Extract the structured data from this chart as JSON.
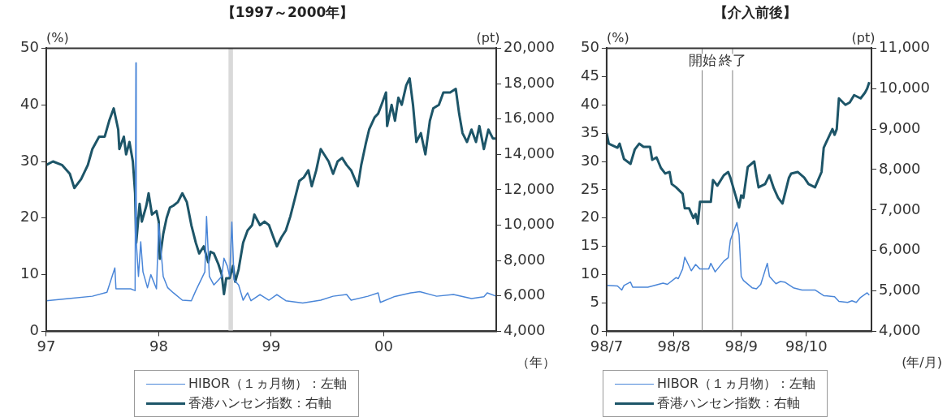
{
  "chart_data": [
    {
      "type": "line",
      "title": "【1997～2000年】",
      "ylabel": "(%)",
      "y2label": "(pt)",
      "xlabel": "（年）",
      "xlim": [
        1997,
        2001
      ],
      "xticks": [
        {
          "value": 1997,
          "label": "97"
        },
        {
          "value": 1998,
          "label": "98"
        },
        {
          "value": 1999,
          "label": "99"
        },
        {
          "value": 2000,
          "label": "00"
        }
      ],
      "ylim": [
        0,
        50
      ],
      "yticks": [
        0,
        10,
        20,
        30,
        40,
        50
      ],
      "y2lim": [
        4000,
        20000
      ],
      "y2ticks": [
        {
          "value": 4000,
          "label": "4,000"
        },
        {
          "value": 6000,
          "label": "6,000"
        },
        {
          "value": 8000,
          "label": "8,000"
        },
        {
          "value": 10000,
          "label": "10,000"
        },
        {
          "value": 12000,
          "label": "12,000"
        },
        {
          "value": 14000,
          "label": "14,000"
        },
        {
          "value": 16000,
          "label": "16,000"
        },
        {
          "value": 18000,
          "label": "18,000"
        },
        {
          "value": 20000,
          "label": "20,000"
        }
      ],
      "grid": false,
      "legend": "bottom",
      "marker": "none",
      "bands": [
        {
          "axis": "x",
          "from": 1998.62,
          "to": 1998.66,
          "color": "#d9d9d9"
        }
      ],
      "series": [
        {
          "name": "HIBOR（１ヵ月物）：左軸",
          "color": "#4a86d8",
          "x": [
            1997.0,
            1997.2,
            1997.41,
            1997.54,
            1997.61,
            1997.62,
            1997.75,
            1997.79,
            1997.797,
            1997.8,
            1997.82,
            1997.84,
            1997.86,
            1997.9,
            1997.93,
            1997.98,
            1998.0,
            1998.02,
            1998.04,
            1998.08,
            1998.13,
            1998.21,
            1998.29,
            1998.33,
            1998.41,
            1998.425,
            1998.45,
            1998.49,
            1998.56,
            1998.58,
            1998.61,
            1998.63,
            1998.65,
            1998.67,
            1998.71,
            1998.75,
            1998.79,
            1998.82,
            1998.9,
            1998.98,
            1999.05,
            1999.13,
            1999.28,
            1999.44,
            1999.55,
            1999.67,
            1999.71,
            1999.86,
            1999.95,
            1999.97,
            2000.09,
            2000.24,
            2000.32,
            2000.47,
            2000.62,
            2000.78,
            2000.89,
            2000.92,
            2001.0
          ],
          "values": [
            5.4,
            5.8,
            6.2,
            6.9,
            11.2,
            7.5,
            7.5,
            7.2,
            47.4,
            16.0,
            9.7,
            15.8,
            10.5,
            7.7,
            10.0,
            7.5,
            19.0,
            14.3,
            9.7,
            7.7,
            6.8,
            5.5,
            5.4,
            7.2,
            10.5,
            20.3,
            9.7,
            8.2,
            9.7,
            12.9,
            11.5,
            9.7,
            19.3,
            9.1,
            8.2,
            5.5,
            6.8,
            5.4,
            6.5,
            5.5,
            6.5,
            5.4,
            5.0,
            5.5,
            6.2,
            6.5,
            5.5,
            6.2,
            6.8,
            5.1,
            6.1,
            6.8,
            7.0,
            6.2,
            6.5,
            5.8,
            6.1,
            6.8,
            6.2
          ]
        },
        {
          "name": "香港ハンセン指数：右軸",
          "color": "#1d5568",
          "axis": "y2",
          "x": [
            1997.0,
            1997.06,
            1997.14,
            1997.21,
            1997.25,
            1997.31,
            1997.37,
            1997.41,
            1997.47,
            1997.52,
            1997.56,
            1997.6,
            1997.64,
            1997.65,
            1997.69,
            1997.71,
            1997.74,
            1997.77,
            1997.79,
            1997.795,
            1997.8,
            1997.83,
            1997.85,
            1997.89,
            1997.91,
            1997.94,
            1997.98,
            1998.0,
            1998.01,
            1998.04,
            1998.07,
            1998.1,
            1998.13,
            1998.17,
            1998.21,
            1998.25,
            1998.29,
            1998.33,
            1998.36,
            1998.4,
            1998.44,
            1998.46,
            1998.49,
            1998.53,
            1998.56,
            1998.58,
            1998.6,
            1998.63,
            1998.66,
            1998.68,
            1998.71,
            1998.75,
            1998.79,
            1998.83,
            1998.85,
            1998.9,
            1998.94,
            1998.98,
            1999.02,
            1999.05,
            1999.09,
            1999.13,
            1999.17,
            1999.21,
            1999.25,
            1999.29,
            1999.33,
            1999.36,
            1999.4,
            1999.44,
            1999.51,
            1999.55,
            1999.59,
            1999.63,
            1999.67,
            1999.71,
            1999.77,
            1999.8,
            1999.84,
            1999.87,
            1999.92,
            1999.95,
            1999.98,
            2000.02,
            2000.03,
            2000.07,
            2000.1,
            2000.13,
            2000.16,
            2000.2,
            2000.23,
            2000.26,
            2000.29,
            2000.33,
            2000.37,
            2000.41,
            2000.44,
            2000.49,
            2000.53,
            2000.59,
            2000.64,
            2000.67,
            2000.7,
            2000.74,
            2000.78,
            2000.82,
            2000.85,
            2000.89,
            2000.93,
            2000.97,
            2001.0
          ],
          "values": [
            13400,
            13600,
            13400,
            12900,
            12100,
            12600,
            13400,
            14300,
            15000,
            15000,
            15900,
            16600,
            15400,
            14300,
            15000,
            14000,
            14700,
            13600,
            11800,
            10400,
            9000,
            11200,
            10200,
            11100,
            11800,
            10600,
            10800,
            10200,
            8100,
            9500,
            10400,
            11000,
            11100,
            11300,
            11800,
            11300,
            10000,
            9000,
            8400,
            8800,
            7900,
            8500,
            8400,
            7800,
            7200,
            6100,
            7000,
            7000,
            7700,
            6800,
            7500,
            9000,
            9700,
            10000,
            10600,
            10000,
            10200,
            10000,
            9300,
            8800,
            9300,
            9700,
            10500,
            11500,
            12500,
            12700,
            13100,
            12200,
            13100,
            14300,
            13600,
            12900,
            13600,
            13800,
            13400,
            13100,
            12200,
            13400,
            14600,
            15400,
            16100,
            16300,
            16800,
            17500,
            15600,
            16800,
            15900,
            17200,
            16800,
            17900,
            18300,
            16800,
            14700,
            15200,
            14000,
            15900,
            16600,
            16800,
            17500,
            17500,
            17700,
            16300,
            15200,
            14700,
            15400,
            14700,
            15600,
            14300,
            15400,
            14900,
            14900
          ]
        }
      ]
    },
    {
      "type": "line",
      "title": "【介入前後】",
      "ylabel": "(%)",
      "y2label": "(pt)",
      "xlabel": "(年/月)",
      "xlim": [
        "--07-01",
        "--10-31"
      ],
      "xticks": [
        {
          "value": "--07-01",
          "label": "98/7"
        },
        {
          "value": "--08-01",
          "label": "98/8"
        },
        {
          "value": "--09-01",
          "label": "98/9"
        },
        {
          "value": "--10-01",
          "label": "98/10"
        }
      ],
      "ylim": [
        0,
        50
      ],
      "yticks": [
        0,
        5,
        10,
        15,
        20,
        25,
        30,
        35,
        40,
        45,
        50
      ],
      "y2lim": [
        4000,
        11000
      ],
      "y2ticks": [
        {
          "value": 4000,
          "label": "4,000"
        },
        {
          "value": 5000,
          "label": "5,000"
        },
        {
          "value": 6000,
          "label": "6,000"
        },
        {
          "value": 7000,
          "label": "7,000"
        },
        {
          "value": 8000,
          "label": "8,000"
        },
        {
          "value": 9000,
          "label": "9,000"
        },
        {
          "value": 10000,
          "label": "10,000"
        },
        {
          "value": 11000,
          "label": "11,000"
        }
      ],
      "grid": false,
      "legend": "bottom",
      "marker": "none",
      "ref_lines": [
        {
          "axis": "x",
          "value": "--08-14",
          "label": "開始",
          "color": "#808080"
        },
        {
          "axis": "x",
          "value": "--08-28",
          "label": "終了",
          "color": "#808080"
        }
      ],
      "series": [
        {
          "name": "HIBOR（１ヵ月物）：左軸",
          "color": "#4a86d8",
          "x": [
            "--07-01",
            "--07-06",
            "--07-08",
            "--07-09",
            "--07-12",
            "--07-13",
            "--07-20",
            "--07-27",
            "--07-29",
            "--08-02",
            "--08-03",
            "--08-05",
            "--08-06",
            "--08-09",
            "--08-11",
            "--08-13",
            "--08-17",
            "--08-18",
            "--08-20",
            "--08-24",
            "--08-26",
            "--08-27",
            "--08-30",
            "--08-31",
            "--09-01",
            "--09-02",
            "--09-06",
            "--09-08",
            "--09-10",
            "--09-13",
            "--09-14",
            "--09-17",
            "--09-19",
            "--09-21",
            "--09-25",
            "--09-29",
            "--10-05",
            "--10-09",
            "--10-14",
            "--10-16",
            "--10-20",
            "--10-22",
            "--10-24",
            "--10-26",
            "--10-29",
            "--10-30"
          ],
          "values": [
            8.1,
            8.0,
            7.3,
            8.1,
            8.7,
            7.8,
            7.8,
            8.5,
            8.3,
            9.5,
            9.3,
            11.0,
            13.1,
            10.7,
            11.8,
            11.0,
            11.0,
            12.0,
            10.5,
            12.4,
            13.0,
            16.1,
            19.2,
            17.1,
            9.7,
            9.0,
            7.7,
            7.5,
            8.3,
            12.0,
            9.7,
            8.4,
            8.8,
            8.7,
            7.7,
            7.3,
            7.3,
            6.3,
            6.1,
            5.3,
            5.1,
            5.4,
            5.1,
            6.0,
            6.8,
            6.4
          ]
        },
        {
          "name": "香港ハンセン指数：右軸",
          "color": "#1d5568",
          "axis": "y2",
          "x": [
            "--07-01",
            "--07-02",
            "--07-06",
            "--07-07",
            "--07-09",
            "--07-12",
            "--07-14",
            "--07-16",
            "--07-18",
            "--07-21",
            "--07-22",
            "--07-24",
            "--07-26",
            "--07-28",
            "--07-30",
            "--07-31",
            "--08-02",
            "--08-05",
            "--08-06",
            "--08-08",
            "--08-10",
            "--08-11",
            "--08-12",
            "--08-13",
            "--08-17",
            "--08-18",
            "--08-19",
            "--08-21",
            "--08-24",
            "--08-26",
            "--08-27",
            "--08-31",
            "--09-01",
            "--09-02",
            "--09-04",
            "--09-07",
            "--09-08",
            "--09-09",
            "--09-12",
            "--09-14",
            "--09-16",
            "--09-18",
            "--09-20",
            "--09-23",
            "--09-24",
            "--09-27",
            "--09-30",
            "--10-02",
            "--10-05",
            "--10-08",
            "--10-09",
            "--10-13",
            "--10-14",
            "--10-15",
            "--10-16",
            "--10-19",
            "--10-21",
            "--10-23",
            "--10-26",
            "--10-28",
            "--10-29",
            "--10-30"
          ],
          "values": [
            8900,
            8640,
            8540,
            8640,
            8260,
            8140,
            8500,
            8640,
            8560,
            8560,
            8240,
            8300,
            8040,
            7900,
            7940,
            7640,
            7560,
            7400,
            7040,
            7040,
            6800,
            6900,
            6660,
            7200,
            7200,
            7200,
            7740,
            7600,
            7860,
            7940,
            7800,
            7060,
            7360,
            7300,
            8060,
            8200,
            7860,
            7560,
            7640,
            7860,
            7540,
            7300,
            7160,
            7800,
            7900,
            7940,
            7800,
            7640,
            7560,
            7940,
            8540,
            9000,
            8860,
            9000,
            9760,
            9600,
            9660,
            9840,
            9760,
            9900,
            10000,
            10160
          ]
        }
      ]
    }
  ]
}
